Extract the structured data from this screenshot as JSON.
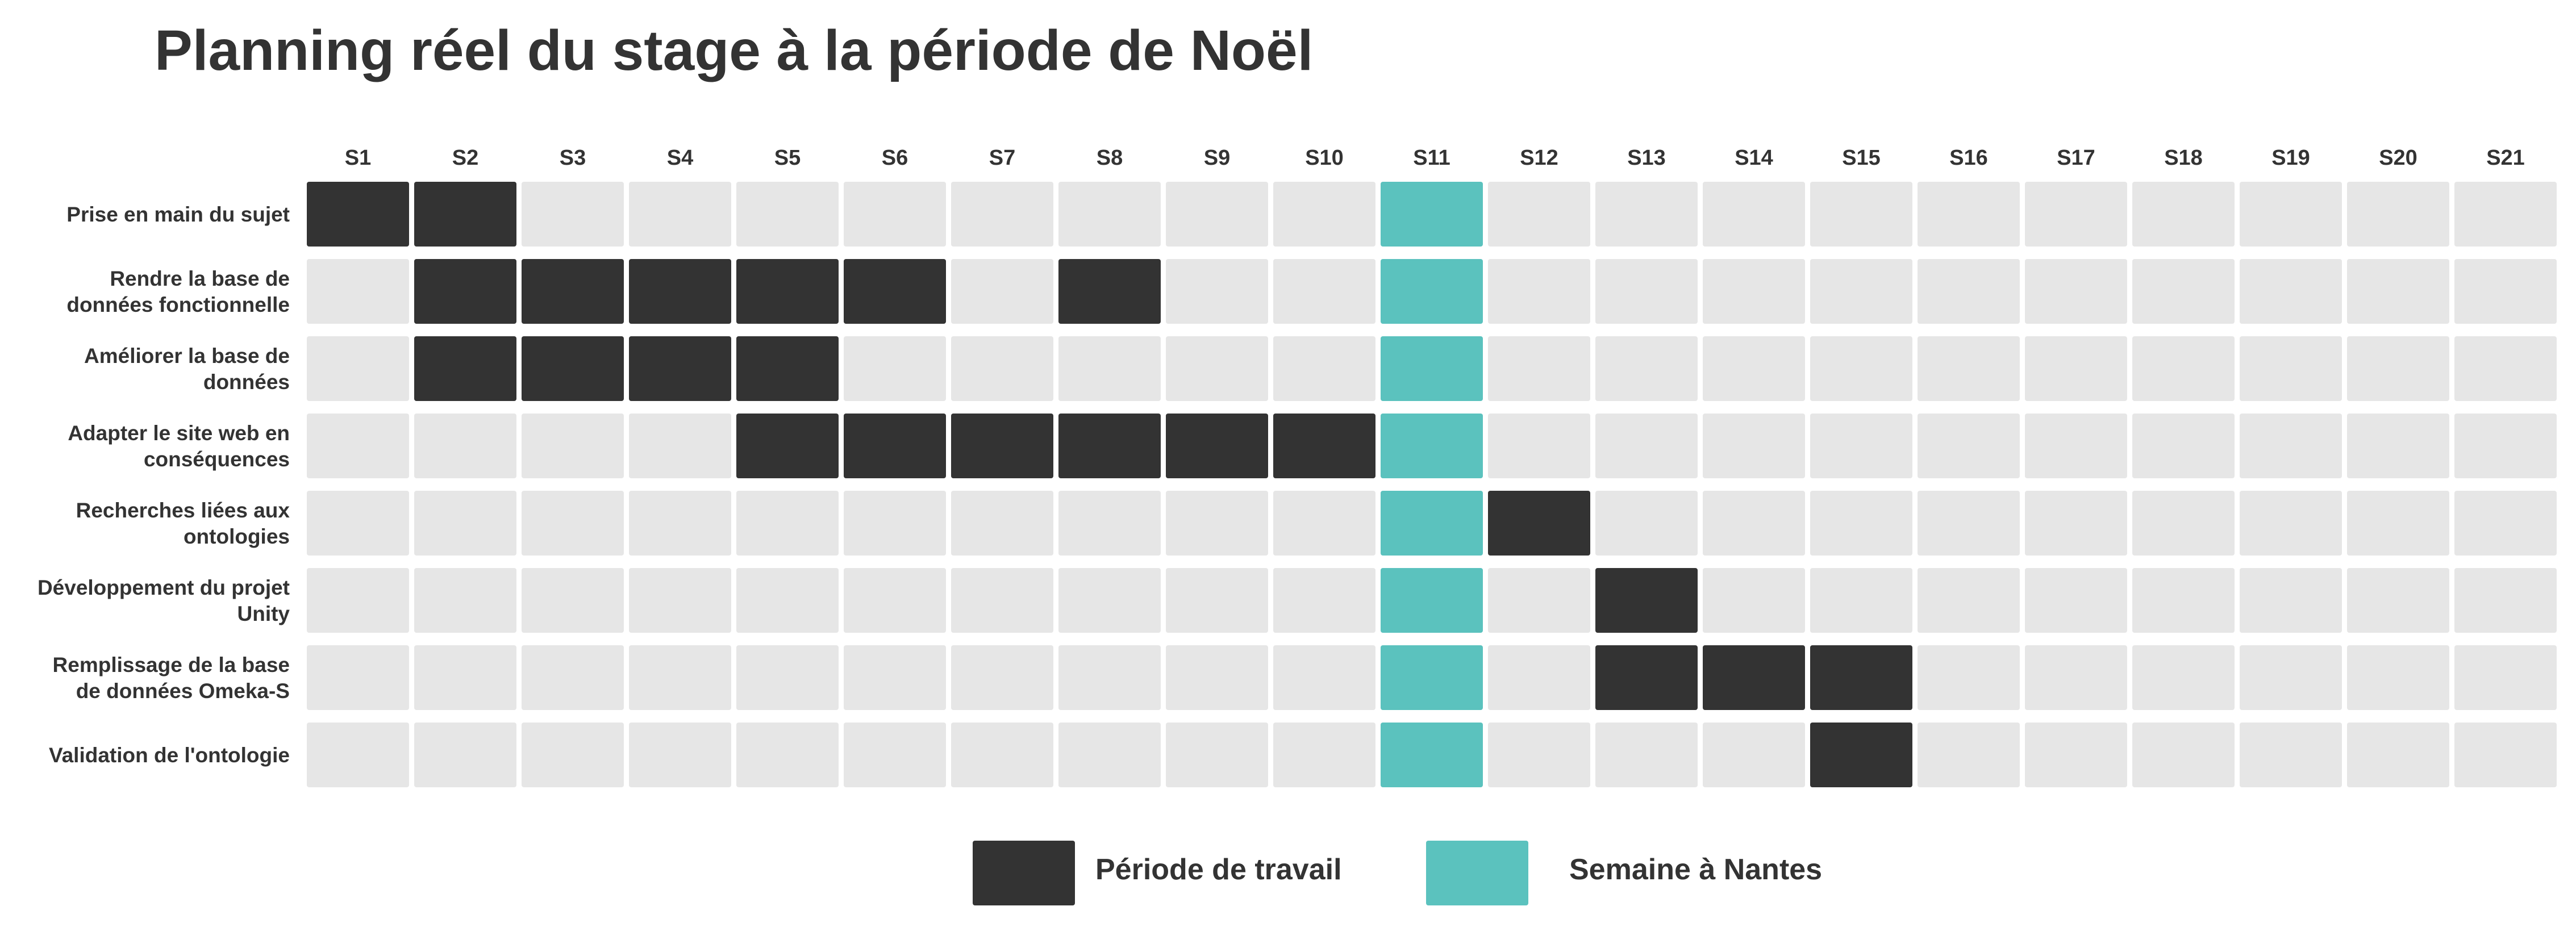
{
  "chart_data": {
    "type": "heatmap",
    "title": "Planning réel du stage à la période de Noël",
    "weeks": [
      "S1",
      "S2",
      "S3",
      "S4",
      "S5",
      "S6",
      "S7",
      "S8",
      "S9",
      "S10",
      "S11",
      "S12",
      "S13",
      "S14",
      "S15",
      "S16",
      "S17",
      "S18",
      "S19",
      "S20",
      "S21"
    ],
    "tasks": [
      {
        "label_lines": [
          "Prise en main du sujet"
        ],
        "work_weeks": [
          "S1",
          "S2"
        ]
      },
      {
        "label_lines": [
          "Rendre la base de",
          "données fonctionnelle"
        ],
        "work_weeks": [
          "S2",
          "S3",
          "S4",
          "S5",
          "S6",
          "S8"
        ]
      },
      {
        "label_lines": [
          "Améliorer la base de",
          "données"
        ],
        "work_weeks": [
          "S2",
          "S3",
          "S4",
          "S5"
        ]
      },
      {
        "label_lines": [
          "Adapter le site web en",
          "conséquences"
        ],
        "work_weeks": [
          "S5",
          "S6",
          "S7",
          "S8",
          "S9",
          "S10"
        ]
      },
      {
        "label_lines": [
          "Recherches liées aux",
          "ontologies"
        ],
        "work_weeks": [
          "S12"
        ]
      },
      {
        "label_lines": [
          "Développement du projet",
          "Unity"
        ],
        "work_weeks": [
          "S13"
        ]
      },
      {
        "label_lines": [
          "Remplissage de la base",
          "de données Omeka-S"
        ],
        "work_weeks": [
          "S13",
          "S14",
          "S15"
        ]
      },
      {
        "label_lines": [
          "Validation de l'ontologie"
        ],
        "work_weeks": [
          "S15"
        ]
      }
    ],
    "nantes_week": "S11",
    "legend": [
      {
        "key": "work",
        "label": "Période de travail",
        "color": "#333333"
      },
      {
        "key": "nantes",
        "label": "Semaine à Nantes",
        "color": "#5bc2be"
      }
    ],
    "colors": {
      "work": "#333333",
      "nantes": "#5bc2be",
      "empty": "#e6e6e6"
    },
    "grid": false,
    "legend_position": "bottom-center"
  }
}
